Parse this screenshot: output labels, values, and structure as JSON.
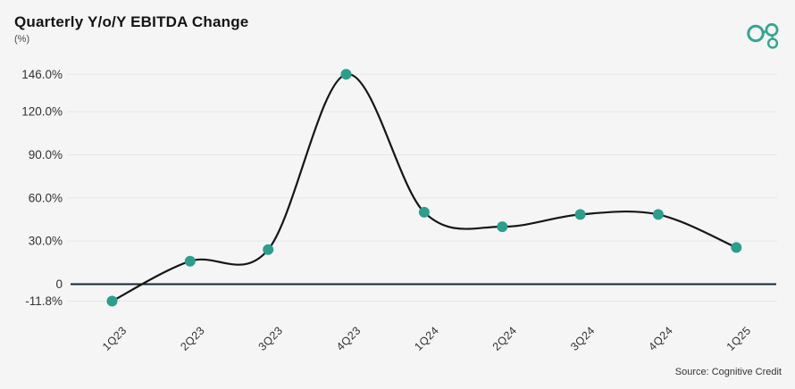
{
  "header": {
    "title": "Quarterly Y/o/Y EBITDA Change",
    "subtitle": "(%)"
  },
  "logo": {
    "name": "cognitive-credit-logo",
    "color": "#33a58f"
  },
  "footer": {
    "source": "Source: Cognitive Credit"
  },
  "colors": {
    "background": "#f5f5f5",
    "line": "#161616",
    "marker": "#2b9e8c",
    "grid": "#e7e7e7",
    "zero_axis": "#10263a",
    "tick_text": "#333333"
  },
  "chart_data": {
    "type": "line",
    "title": "Quarterly Y/o/Y EBITDA Change",
    "ylabel": "(%)",
    "categories": [
      "1Q23",
      "2Q23",
      "3Q23",
      "4Q23",
      "1Q24",
      "2Q24",
      "3Q24",
      "4Q24",
      "1Q25"
    ],
    "values": [
      -11.8,
      16.0,
      24.0,
      146.0,
      50.0,
      40.0,
      48.5,
      48.5,
      25.5
    ],
    "yticks": [
      {
        "label": "146.0%",
        "value": 146.0
      },
      {
        "label": "120.0%",
        "value": 120.0
      },
      {
        "label": "90.0%",
        "value": 90.0
      },
      {
        "label": "60.0%",
        "value": 60.0
      },
      {
        "label": "30.0%",
        "value": 30.0
      },
      {
        "label": "0",
        "value": 0
      },
      {
        "label": "-11.8%",
        "value": -11.8
      }
    ],
    "ylim": [
      -11.8,
      146.0
    ],
    "grid": true,
    "legend": false,
    "smooth": true,
    "marker": "circle",
    "source": "Source: Cognitive Credit"
  }
}
